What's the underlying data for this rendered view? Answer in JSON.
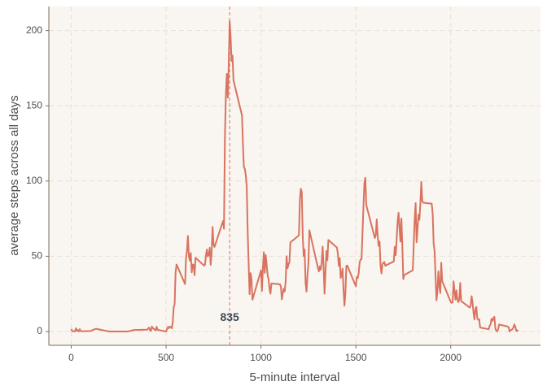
{
  "chart_data": {
    "type": "line",
    "xlabel": "5-minute interval",
    "ylabel": "average steps across all days",
    "x": [
      0,
      5,
      10,
      15,
      20,
      25,
      30,
      35,
      40,
      45,
      50,
      55,
      100,
      130,
      200,
      230,
      300,
      330,
      400,
      410,
      415,
      420,
      425,
      430,
      445,
      450,
      455,
      500,
      505,
      510,
      515,
      520,
      525,
      530,
      535,
      540,
      545,
      550,
      555,
      600,
      605,
      610,
      615,
      620,
      625,
      630,
      635,
      640,
      645,
      650,
      655,
      700,
      705,
      710,
      715,
      720,
      725,
      730,
      735,
      740,
      745,
      750,
      755,
      800,
      805,
      810,
      815,
      820,
      825,
      830,
      835,
      840,
      845,
      850,
      855,
      900,
      905,
      910,
      915,
      920,
      925,
      930,
      935,
      940,
      945,
      950,
      955,
      1000,
      1005,
      1010,
      1015,
      1020,
      1025,
      1030,
      1035,
      1040,
      1045,
      1050,
      1055,
      1100,
      1105,
      1110,
      1115,
      1120,
      1125,
      1130,
      1135,
      1140,
      1145,
      1150,
      1155,
      1200,
      1205,
      1210,
      1215,
      1220,
      1225,
      1230,
      1235,
      1240,
      1245,
      1250,
      1255,
      1300,
      1305,
      1310,
      1315,
      1320,
      1325,
      1330,
      1335,
      1340,
      1345,
      1350,
      1355,
      1400,
      1405,
      1410,
      1415,
      1420,
      1425,
      1430,
      1435,
      1440,
      1445,
      1450,
      1455,
      1500,
      1505,
      1510,
      1515,
      1520,
      1525,
      1530,
      1535,
      1540,
      1545,
      1550,
      1555,
      1600,
      1605,
      1610,
      1615,
      1620,
      1625,
      1630,
      1635,
      1640,
      1645,
      1650,
      1655,
      1700,
      1705,
      1710,
      1715,
      1720,
      1725,
      1730,
      1735,
      1740,
      1745,
      1750,
      1755,
      1800,
      1805,
      1810,
      1815,
      1820,
      1825,
      1830,
      1835,
      1840,
      1845,
      1850,
      1855,
      1900,
      1905,
      1910,
      1915,
      1920,
      1925,
      1930,
      1935,
      1940,
      1945,
      1950,
      1955,
      2000,
      2005,
      2010,
      2015,
      2020,
      2025,
      2030,
      2035,
      2040,
      2045,
      2050,
      2055,
      2100,
      2105,
      2110,
      2115,
      2120,
      2125,
      2130,
      2135,
      2140,
      2145,
      2150,
      2155,
      2200,
      2205,
      2210,
      2215,
      2220,
      2225,
      2230,
      2235,
      2240,
      2245,
      2250,
      2255,
      2300,
      2305,
      2310,
      2315,
      2320,
      2325,
      2330,
      2335,
      2340,
      2345,
      2350,
      2355
    ],
    "series": [
      {
        "color": "#d9735f",
        "values": [
          1.7,
          0.3,
          0.1,
          0.2,
          0.1,
          2.1,
          0.5,
          0.9,
          0,
          1.5,
          0.3,
          0.1,
          0.3,
          1.8,
          0,
          0,
          0,
          1,
          1.2,
          2.6,
          0.9,
          0.3,
          3.3,
          2.2,
          0.8,
          3.1,
          1.1,
          0,
          1.6,
          3,
          2.2,
          3.3,
          3,
          2.1,
          6,
          16,
          18.3,
          39.5,
          44.5,
          31.5,
          49.3,
          53.8,
          63.5,
          50,
          47.1,
          52.2,
          39.3,
          44.5,
          44.2,
          37.4,
          49,
          43.8,
          44.4,
          50.5,
          54.5,
          49.9,
          51,
          55.7,
          44.3,
          52.3,
          69.5,
          57.8,
          56.2,
          73.4,
          68.2,
          129.4,
          157.5,
          171.2,
          155.4,
          177.3,
          206.2,
          195.9,
          179.6,
          183.4,
          167,
          143.5,
          124,
          109.1,
          108.1,
          103.7,
          95.9,
          66.2,
          45.2,
          24.8,
          38.8,
          35,
          21.1,
          40.6,
          27,
          42.4,
          52.7,
          38.9,
          50.8,
          44.3,
          37.4,
          34.7,
          28.3,
          25.1,
          31.9,
          31.4,
          29.7,
          21.3,
          25.5,
          28.4,
          26.5,
          33.4,
          50,
          42,
          44.6,
          46,
          59.2,
          63.9,
          87.7,
          94.8,
          92.8,
          63.4,
          50.2,
          54.5,
          32.4,
          26.5,
          37.7,
          45.1,
          67.3,
          42.3,
          39.9,
          43.3,
          41,
          46.2,
          56.4,
          42.8,
          25.1,
          40,
          53.5,
          47.3,
          60.8,
          55.8,
          52,
          43.6,
          48.7,
          35.5,
          37.5,
          41.8,
          27.5,
          17.1,
          26.1,
          43.6,
          43.8,
          30,
          36.1,
          35.5,
          38.8,
          46,
          47.8,
          48.1,
          65.3,
          82.9,
          98.7,
          102.1,
          84,
          62.1,
          64.1,
          74.5,
          63.2,
          56.9,
          59.8,
          43.9,
          38.6,
          44.7,
          45.5,
          46.2,
          43.7,
          46.6,
          56.3,
          50.7,
          61.2,
          72.7,
          78.9,
          68.9,
          59.7,
          75.1,
          56.5,
          34.8,
          37.5,
          40.7,
          58,
          74.7,
          85.3,
          59.3,
          67.8,
          77.7,
          74.2,
          85.3,
          99.5,
          86.6,
          85.6,
          84.9,
          77.8,
          58,
          53.4,
          36.3,
          20.7,
          27.4,
          40,
          30.2,
          25.5,
          45.7,
          33.5,
          19.6,
          19,
          19.3,
          33.3,
          26.8,
          21.2,
          27.3,
          21.3,
          19.5,
          21.3,
          32.3,
          20.2,
          15.9,
          17.2,
          23.5,
          19.2,
          12.5,
          8,
          14.7,
          16.3,
          8.7,
          7.8,
          8.1,
          2.6,
          1.5,
          3.7,
          4.8,
          8.5,
          7.1,
          8.7,
          9.8,
          2.2,
          0.3,
          0.1,
          1.6,
          4.6,
          3.3,
          2.8,
          0,
          0.8,
          1,
          1.6,
          2.6,
          4.7,
          3.3,
          0.6,
          0.2,
          1.1
        ]
      }
    ],
    "annotation": {
      "x": 835,
      "y": 9
    },
    "xlim": [
      -118,
      2473
    ],
    "ylim": [
      -9.2,
      216
    ],
    "xticks": [
      0,
      500,
      1000,
      1500,
      2000
    ],
    "yticks": [
      0,
      50,
      100,
      150,
      200
    ],
    "grid": true
  }
}
